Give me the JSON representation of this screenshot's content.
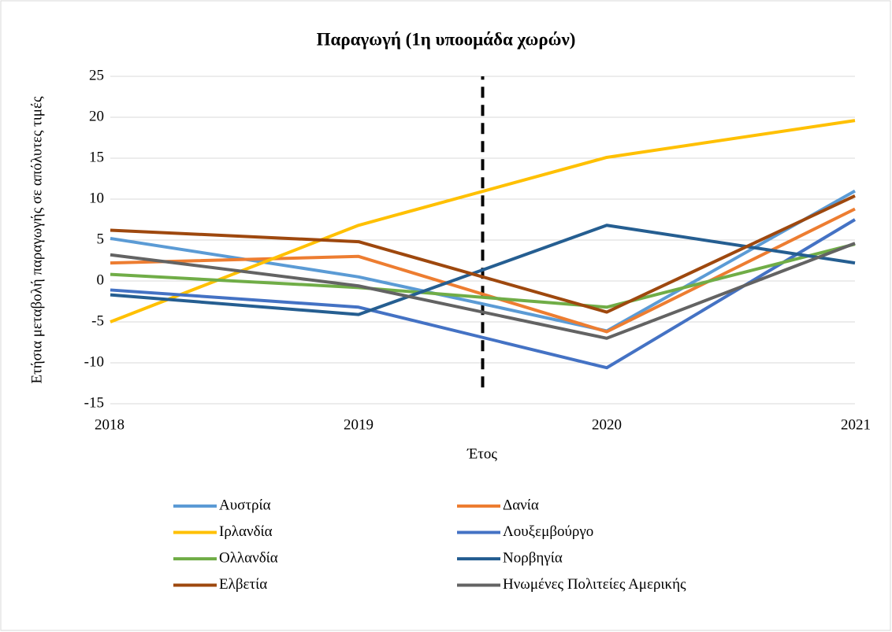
{
  "chart_data": {
    "type": "line",
    "title": "Παραγωγή (1η υποομάδα χωρών)",
    "x_label": "Έτος",
    "y_label": "Ετήσια μεταβολή παραγωγής σε απόλυτες τιμές",
    "x": [
      2018,
      2019,
      2020,
      2021
    ],
    "xlim": [
      2018,
      2021
    ],
    "xticks": [
      2018,
      2019,
      2020,
      2021
    ],
    "ylim": [
      -15,
      25
    ],
    "yticks": [
      -15,
      -10,
      -5,
      0,
      5,
      10,
      15,
      20,
      25
    ],
    "grid": true,
    "legend": "bottom",
    "reference_line": {
      "x": 2019.5,
      "y": [
        -13,
        25
      ],
      "color": "#000000"
    },
    "series": [
      {
        "name": "Αυστρία",
        "color": "#5b9bd5",
        "values": [
          5.2,
          0.5,
          -6.1,
          11.0
        ]
      },
      {
        "name": "Δανία",
        "color": "#ed7d31",
        "values": [
          2.2,
          3.0,
          -6.2,
          8.8
        ]
      },
      {
        "name": "Ιρλανδία",
        "color": "#ffc000",
        "values": [
          -5.0,
          6.8,
          15.1,
          19.6
        ]
      },
      {
        "name": "Λουξεμβούργο",
        "color": "#4472c4",
        "values": [
          -1.1,
          -3.2,
          -10.6,
          7.5
        ]
      },
      {
        "name": "Ολλανδία",
        "color": "#70ad47",
        "values": [
          0.8,
          -0.8,
          -3.2,
          4.5
        ]
      },
      {
        "name": "Νορβηγία",
        "color": "#255e91",
        "values": [
          -1.7,
          -4.1,
          6.8,
          2.2
        ]
      },
      {
        "name": "Ελβετία",
        "color": "#9e480e",
        "values": [
          6.2,
          4.8,
          -3.8,
          10.4
        ]
      },
      {
        "name": "Ηνωμένες Πολιτείες Αμερικής",
        "color": "#636363",
        "values": [
          3.2,
          -0.6,
          -7.0,
          4.6
        ]
      }
    ]
  }
}
